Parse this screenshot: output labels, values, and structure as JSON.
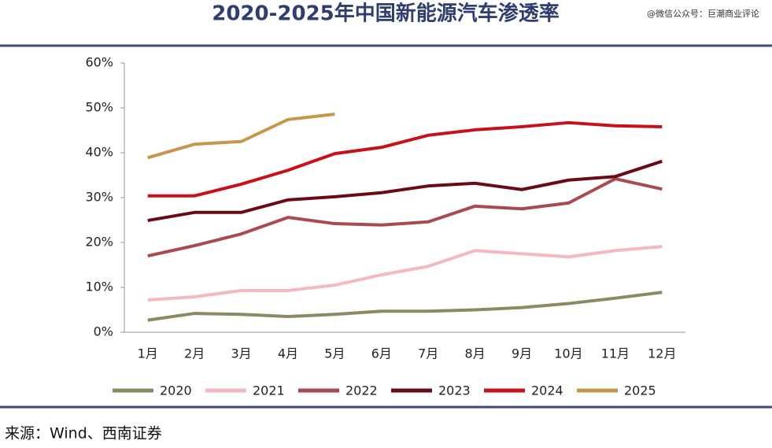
{
  "chart_data": {
    "type": "line",
    "title": "2020-2025年中国新能源汽车渗透率",
    "watermark": "@微信公众号：巨潮商业评论",
    "source": "来源：Wind、西南证券",
    "categories": [
      "1月",
      "2月",
      "3月",
      "4月",
      "5月",
      "6月",
      "7月",
      "8月",
      "9月",
      "10月",
      "11月",
      "12月"
    ],
    "series": [
      {
        "name": "2020",
        "color": "#8c8a62",
        "values": [
          2.7,
          4.2,
          4.0,
          3.5,
          4.0,
          4.7,
          4.7,
          5.0,
          5.5,
          6.4,
          7.6,
          8.9
        ]
      },
      {
        "name": "2021",
        "color": "#f4b8c0",
        "values": [
          7.2,
          7.9,
          9.3,
          9.3,
          10.5,
          12.8,
          14.7,
          18.2,
          17.5,
          16.8,
          18.2,
          19.1
        ]
      },
      {
        "name": "2022",
        "color": "#a84a50",
        "values": [
          17.0,
          19.3,
          21.9,
          25.6,
          24.2,
          23.9,
          24.6,
          28.1,
          27.5,
          28.8,
          34.2,
          31.9
        ]
      },
      {
        "name": "2023",
        "color": "#6b0a14",
        "values": [
          24.9,
          26.7,
          26.7,
          29.5,
          30.2,
          31.1,
          32.6,
          33.2,
          31.8,
          33.9,
          34.7,
          38.1
        ]
      },
      {
        "name": "2024",
        "color": "#c8101a",
        "values": [
          30.4,
          30.4,
          33.0,
          36.1,
          39.8,
          41.2,
          43.9,
          45.1,
          45.8,
          46.7,
          46.0,
          45.8
        ]
      },
      {
        "name": "2025",
        "color": "#c8964a",
        "values": [
          38.9,
          41.9,
          42.5,
          47.4,
          48.6,
          null,
          null,
          null,
          null,
          null,
          null,
          null
        ]
      }
    ],
    "ylim": [
      0,
      60
    ],
    "yticks": [
      {
        "value": 0,
        "label": "0%"
      },
      {
        "value": 10,
        "label": "10%"
      },
      {
        "value": 20,
        "label": "20%"
      },
      {
        "value": 30,
        "label": "30%"
      },
      {
        "value": 40,
        "label": "40%"
      },
      {
        "value": 50,
        "label": "50%"
      },
      {
        "value": 60,
        "label": "60%"
      }
    ],
    "grid": false
  }
}
